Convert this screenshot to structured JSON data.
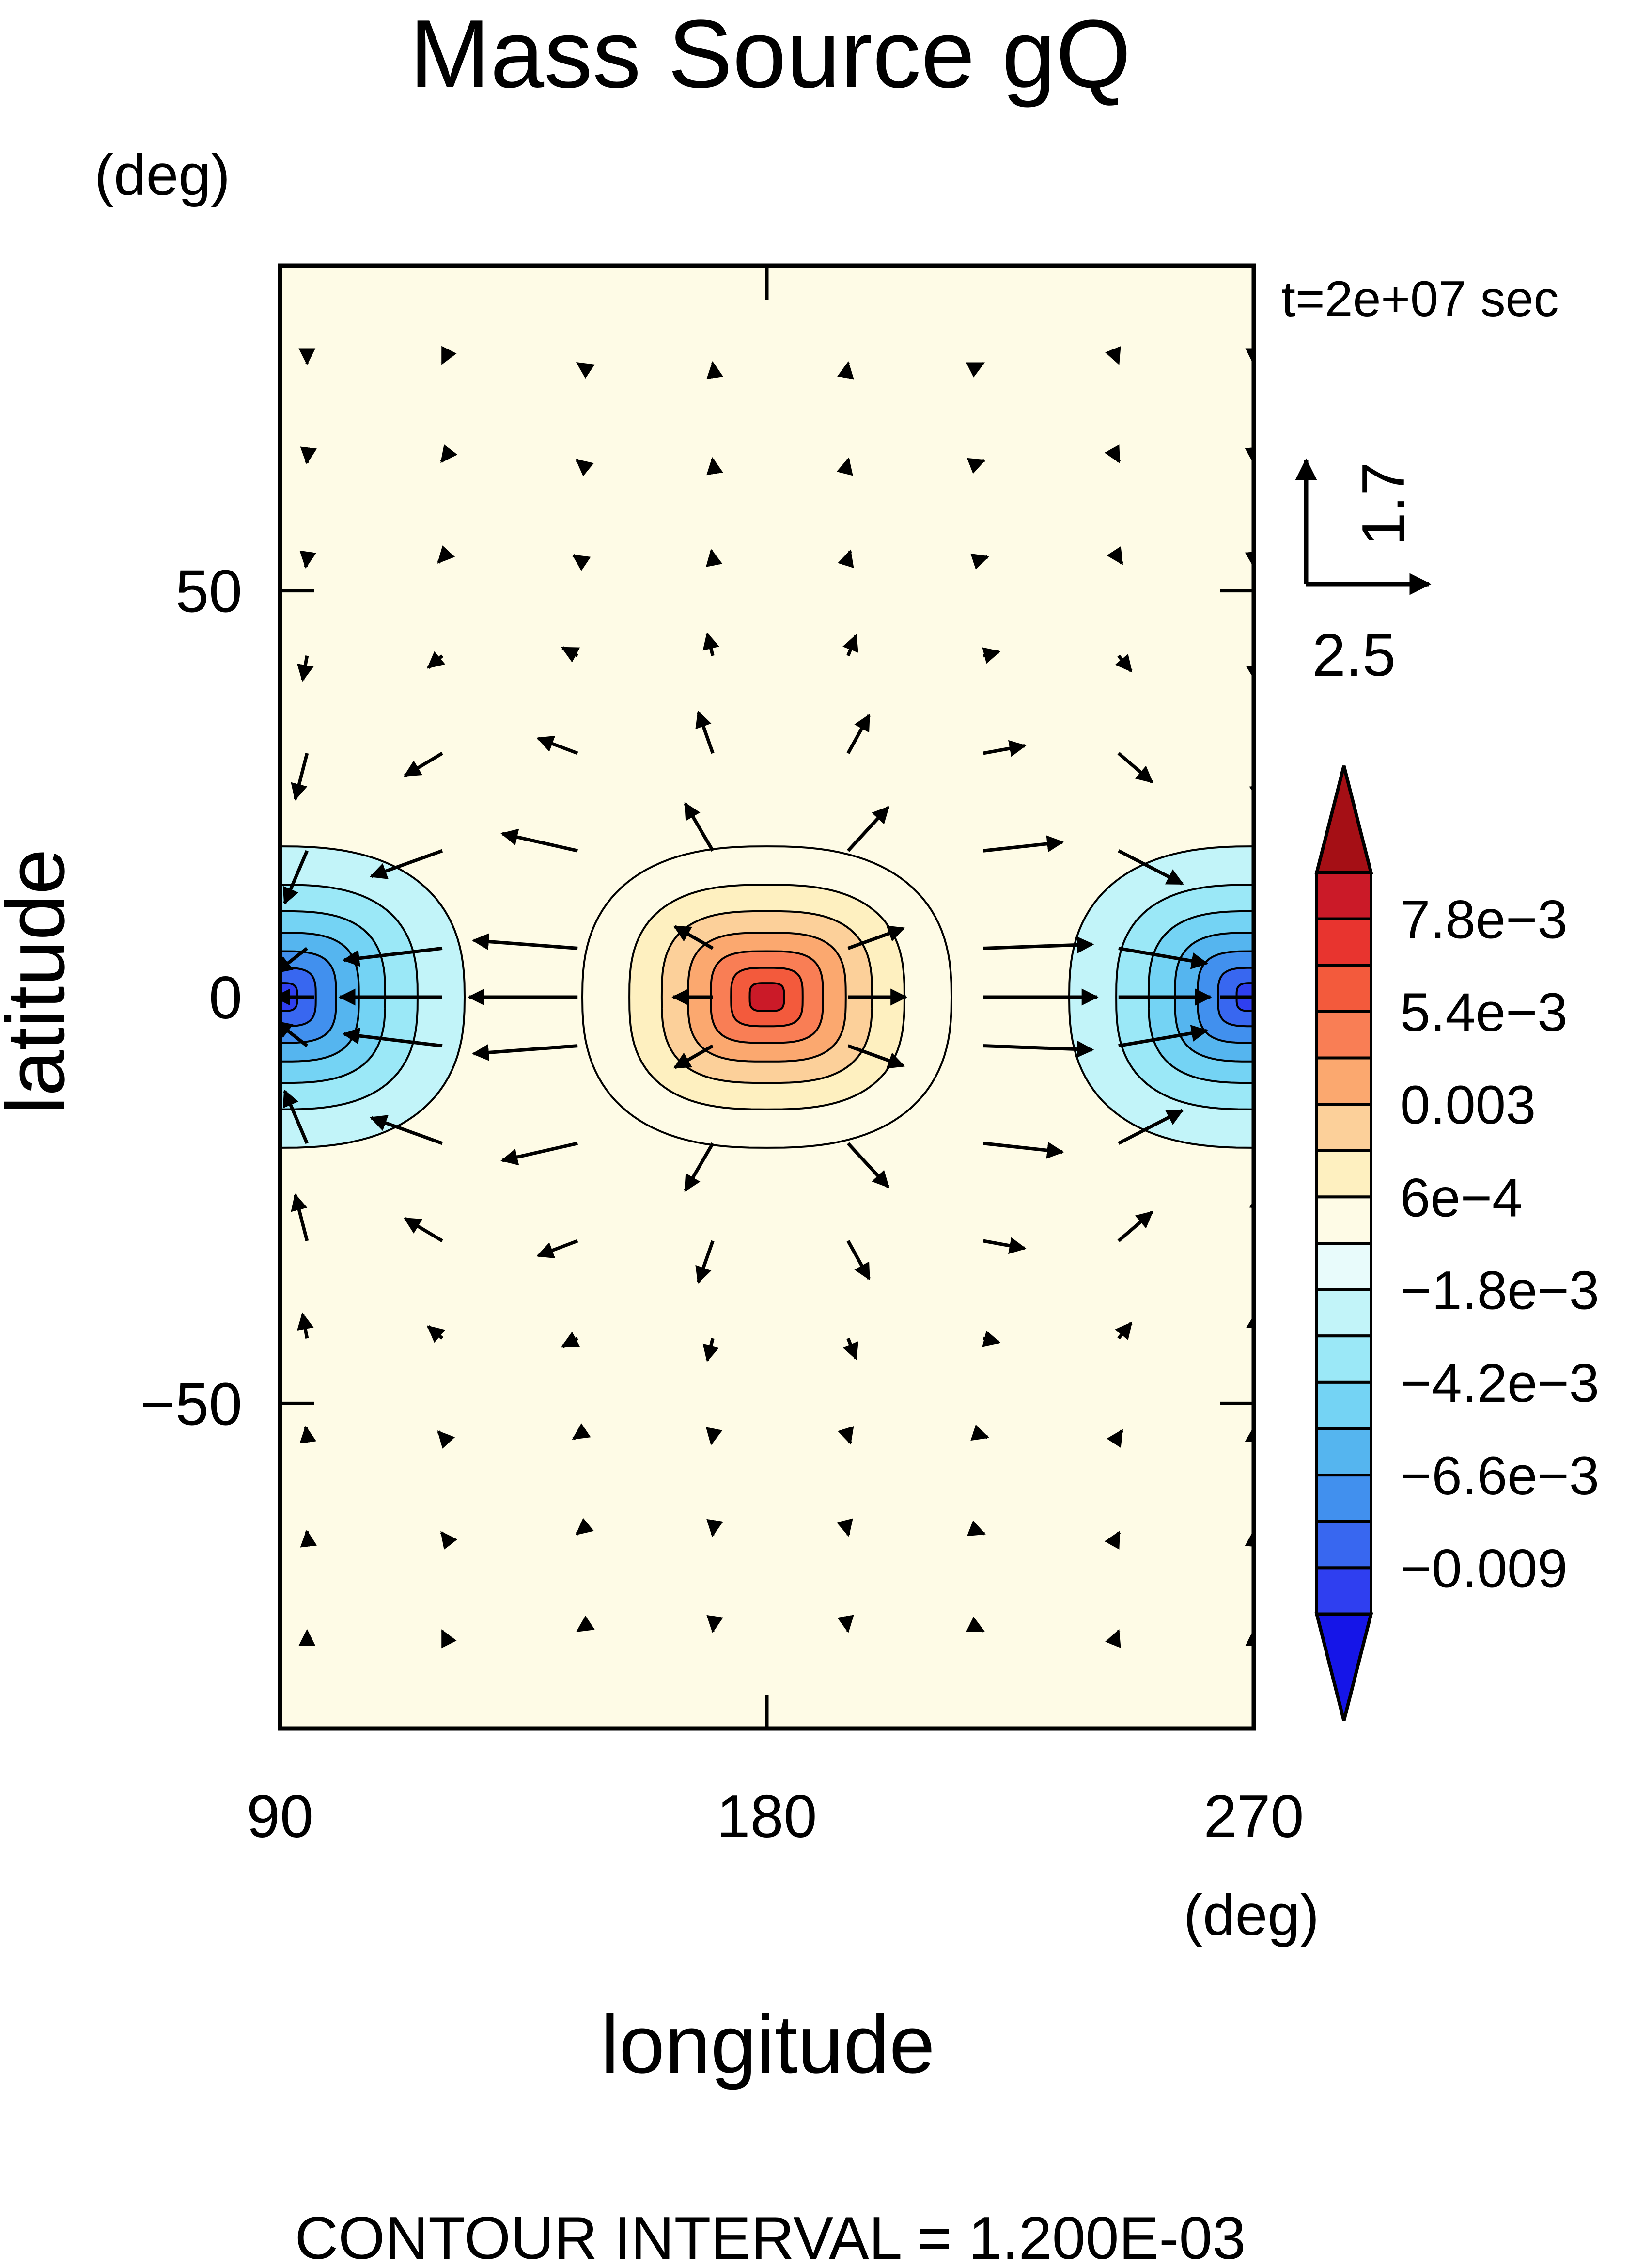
{
  "chart_data": {
    "type": "heatmap",
    "title": "Mass Source gQ",
    "xlabel": "longitude",
    "ylabel": "latitude",
    "xunit": "(deg)",
    "yunit": "(deg)",
    "xlim": [
      90,
      270
    ],
    "ylim": [
      -90,
      90
    ],
    "xticks": [
      90,
      180,
      270
    ],
    "yticks": [
      50,
      0,
      -50
    ],
    "time_label": "t=2e+07 sec",
    "footer": "CONTOUR INTERVAL = 1.200E-03",
    "field": {
      "description_from_plot": "positive mass source centred at (180, 0); negative sinks at 90 and 270 on the equator",
      "contour_interval": 0.0012,
      "extrema": [
        {
          "lon": 180,
          "lat": 0,
          "value": 0.009
        },
        {
          "lon": 90,
          "lat": 0,
          "value": -0.009
        },
        {
          "lon": 270,
          "lat": 0,
          "value": -0.009
        }
      ]
    },
    "vector_reference": {
      "x_value": "2.5",
      "y_value": "1.7"
    },
    "colorbar": {
      "labels": [
        "7.8e−3",
        "5.4e−3",
        "0.003",
        "6e−4",
        "−1.8e−3",
        "−4.2e−3",
        "−6.6e−3",
        "−0.009"
      ],
      "colors_top_to_bottom": [
        "#a50f15",
        "#cb1a28",
        "#e8342f",
        "#f35a3c",
        "#f97e55",
        "#fba86f",
        "#fcd09a",
        "#fef0c0",
        "#fefbe6",
        "#e8fbfb",
        "#c2f4f9",
        "#9be8f7",
        "#74d3f4",
        "#55b5ef",
        "#4190ee",
        "#3867f0",
        "#2f3ff0",
        "#1515e8"
      ]
    }
  }
}
